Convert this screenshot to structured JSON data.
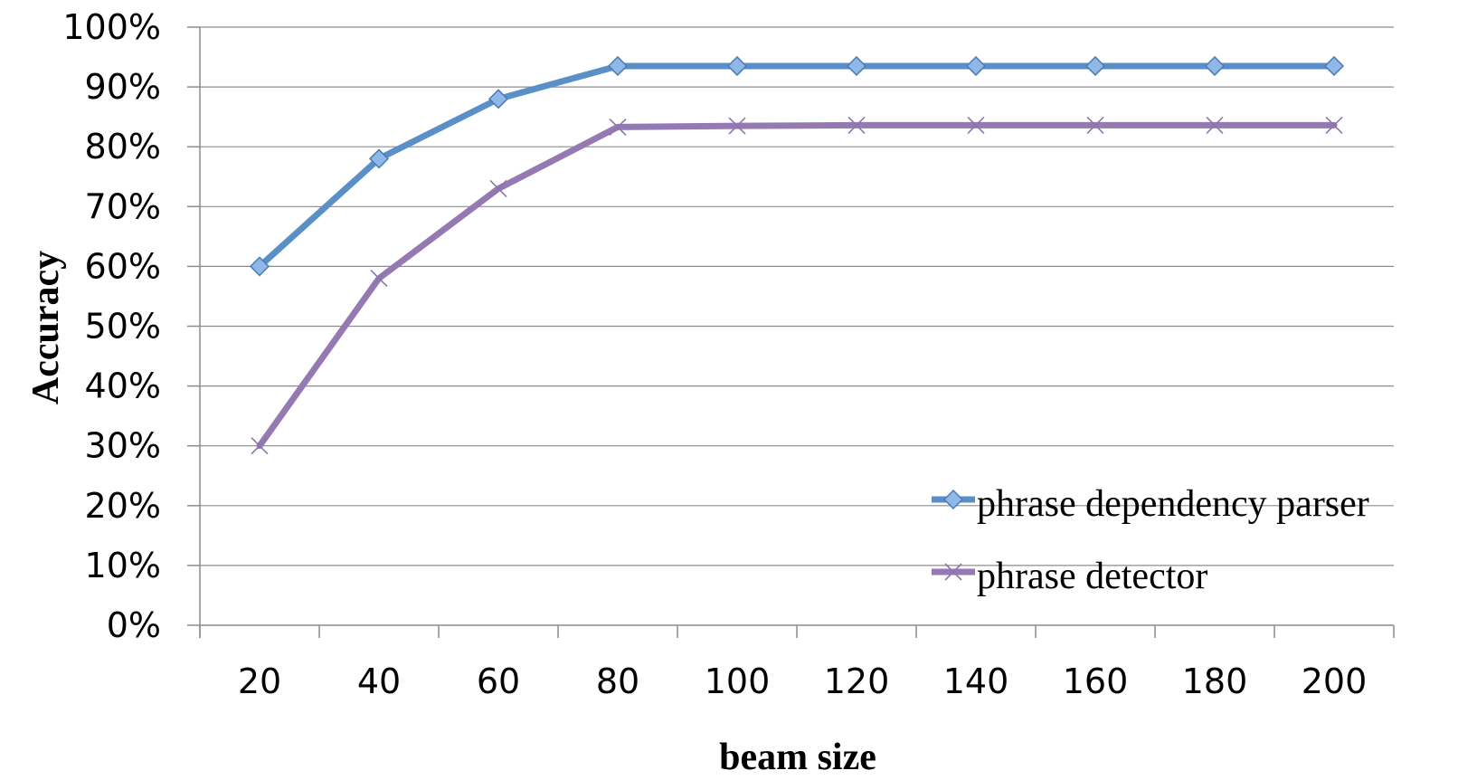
{
  "chart_data": {
    "type": "line",
    "title": "",
    "xlabel": "beam size",
    "ylabel": "Accuracy",
    "categories": [
      "20",
      "40",
      "60",
      "80",
      "100",
      "120",
      "140",
      "160",
      "180",
      "200"
    ],
    "yticks": [
      "0%",
      "10%",
      "20%",
      "30%",
      "40%",
      "50%",
      "60%",
      "70%",
      "80%",
      "90%",
      "100%"
    ],
    "ylim": [
      0,
      100
    ],
    "grid": true,
    "legend": "bottom-right",
    "series": [
      {
        "name": "phrase dependency parser",
        "values": [
          60,
          78,
          88,
          93.5,
          93.5,
          93.5,
          93.5,
          93.5,
          93.5,
          93.5
        ],
        "color": "#5b8fc7",
        "marker_color": "#8fb8e8",
        "marker": "diamond"
      },
      {
        "name": "phrase detector",
        "values": [
          30,
          58,
          73,
          83.3,
          83.5,
          83.6,
          83.6,
          83.6,
          83.6,
          83.6
        ],
        "color": "#9579b3",
        "marker_color": "#8e73ad",
        "marker": "x"
      }
    ]
  }
}
